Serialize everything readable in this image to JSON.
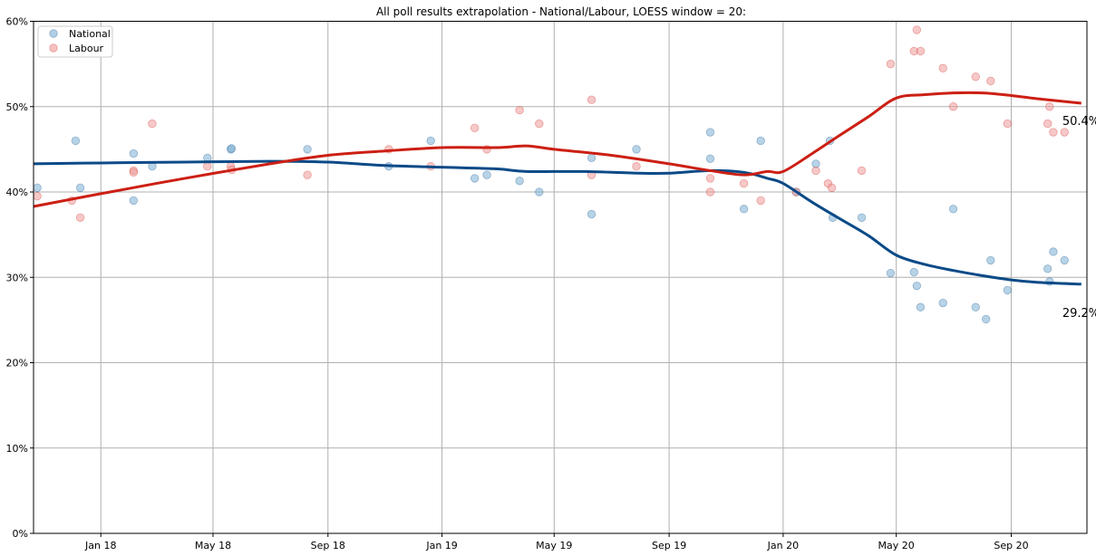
{
  "chart_data": {
    "type": "scatter",
    "title": "All poll results extrapolation - National/Labour, LOESS window = 20:",
    "xlabel": "",
    "ylabel": "",
    "xlim": [
      "2017-10-21",
      "2020-11-21"
    ],
    "ylim": [
      0,
      60
    ],
    "grid": true,
    "legend_position": "top-left",
    "x_ticks": [
      {
        "date": "2018-01-01",
        "label": "Jan 18"
      },
      {
        "date": "2018-05-01",
        "label": "May 18"
      },
      {
        "date": "2018-09-01",
        "label": "Sep 18"
      },
      {
        "date": "2019-01-01",
        "label": "Jan 19"
      },
      {
        "date": "2019-05-01",
        "label": "May 19"
      },
      {
        "date": "2019-09-01",
        "label": "Sep 19"
      },
      {
        "date": "2020-01-01",
        "label": "Jan 20"
      },
      {
        "date": "2020-05-01",
        "label": "May 20"
      },
      {
        "date": "2020-09-01",
        "label": "Sep 20"
      }
    ],
    "y_ticks": [
      {
        "value": 0,
        "label": "0%"
      },
      {
        "value": 10,
        "label": "10%"
      },
      {
        "value": 20,
        "label": "20%"
      },
      {
        "value": 30,
        "label": "30%"
      },
      {
        "value": 40,
        "label": "40%"
      },
      {
        "value": 50,
        "label": "50%"
      },
      {
        "value": 60,
        "label": "60%"
      }
    ],
    "series": [
      {
        "name": "National",
        "dot_color": "#7bafd4",
        "line_color": "#0b4a87",
        "end_label": "29.2%",
        "points": [
          [
            "2017-10-25",
            40.5
          ],
          [
            "2017-12-05",
            46
          ],
          [
            "2017-12-10",
            40.5
          ],
          [
            "2018-02-05",
            44.5
          ],
          [
            "2018-02-05",
            39
          ],
          [
            "2018-02-25",
            43
          ],
          [
            "2018-04-25",
            44
          ],
          [
            "2018-05-20",
            45
          ],
          [
            "2018-05-21",
            45.1
          ],
          [
            "2018-08-10",
            45
          ],
          [
            "2018-11-05",
            43
          ],
          [
            "2018-12-20",
            46
          ],
          [
            "2019-02-05",
            41.6
          ],
          [
            "2019-02-18",
            42
          ],
          [
            "2019-03-25",
            41.3
          ],
          [
            "2019-04-15",
            40
          ],
          [
            "2019-06-10",
            44
          ],
          [
            "2019-06-10",
            37.4
          ],
          [
            "2019-07-28",
            45
          ],
          [
            "2019-10-15",
            47
          ],
          [
            "2019-10-15",
            43.9
          ],
          [
            "2019-11-20",
            38
          ],
          [
            "2019-12-08",
            46
          ],
          [
            "2020-01-15",
            40
          ],
          [
            "2020-02-05",
            43.3
          ],
          [
            "2020-02-20",
            46
          ],
          [
            "2020-02-23",
            37
          ],
          [
            "2020-03-25",
            37
          ],
          [
            "2020-04-25",
            30.5
          ],
          [
            "2020-05-20",
            30.6
          ],
          [
            "2020-05-23",
            29
          ],
          [
            "2020-05-27",
            26.5
          ],
          [
            "2020-06-20",
            27
          ],
          [
            "2020-07-01",
            38
          ],
          [
            "2020-07-25",
            26.5
          ],
          [
            "2020-08-05",
            25.1
          ],
          [
            "2020-08-10",
            32
          ],
          [
            "2020-08-28",
            28.5
          ],
          [
            "2020-10-10",
            31
          ],
          [
            "2020-10-12",
            29.5
          ],
          [
            "2020-10-16",
            33
          ],
          [
            "2020-10-28",
            32
          ]
        ],
        "trend": [
          [
            "2017-10-21",
            43.3
          ],
          [
            "2018-01-01",
            43.4
          ],
          [
            "2018-04-01",
            43.5
          ],
          [
            "2018-07-01",
            43.6
          ],
          [
            "2018-09-01",
            43.5
          ],
          [
            "2018-11-01",
            43.1
          ],
          [
            "2019-01-01",
            42.9
          ],
          [
            "2019-03-01",
            42.7
          ],
          [
            "2019-04-01",
            42.4
          ],
          [
            "2019-06-01",
            42.4
          ],
          [
            "2019-08-01",
            42.2
          ],
          [
            "2019-09-01",
            42.2
          ],
          [
            "2019-10-15",
            42.5
          ],
          [
            "2019-11-20",
            42.3
          ],
          [
            "2019-12-15",
            41.6
          ],
          [
            "2020-01-01",
            41.0
          ],
          [
            "2020-02-01",
            38.8
          ],
          [
            "2020-03-01",
            36.9
          ],
          [
            "2020-04-01",
            34.9
          ],
          [
            "2020-05-01",
            32.6
          ],
          [
            "2020-06-01",
            31.5
          ],
          [
            "2020-07-01",
            30.8
          ],
          [
            "2020-08-01",
            30.2
          ],
          [
            "2020-09-01",
            29.7
          ],
          [
            "2020-10-01",
            29.4
          ],
          [
            "2020-11-15",
            29.2
          ]
        ]
      },
      {
        "name": "Labour",
        "dot_color": "#ee9a9a",
        "line_color": "#cc1f14",
        "end_label": "50.4%",
        "points": [
          [
            "2017-10-25",
            39.5
          ],
          [
            "2017-12-01",
            39
          ],
          [
            "2017-12-10",
            37
          ],
          [
            "2018-02-05",
            42.5
          ],
          [
            "2018-02-05",
            42.3
          ],
          [
            "2018-02-25",
            48
          ],
          [
            "2018-04-25",
            43
          ],
          [
            "2018-05-20",
            43
          ],
          [
            "2018-05-21",
            42.6
          ],
          [
            "2018-08-10",
            42
          ],
          [
            "2018-11-05",
            45
          ],
          [
            "2018-12-20",
            43
          ],
          [
            "2019-02-05",
            47.5
          ],
          [
            "2019-02-18",
            45
          ],
          [
            "2019-03-25",
            49.6
          ],
          [
            "2019-04-15",
            48
          ],
          [
            "2019-06-10",
            50.8
          ],
          [
            "2019-06-10",
            42
          ],
          [
            "2019-07-28",
            43
          ],
          [
            "2019-10-15",
            41.6
          ],
          [
            "2019-10-15",
            40
          ],
          [
            "2019-11-20",
            41
          ],
          [
            "2019-12-08",
            39
          ],
          [
            "2020-01-15",
            40
          ],
          [
            "2020-02-05",
            42.5
          ],
          [
            "2020-02-18",
            41
          ],
          [
            "2020-02-22",
            40.5
          ],
          [
            "2020-03-25",
            42.5
          ],
          [
            "2020-04-25",
            55
          ],
          [
            "2020-05-20",
            56.5
          ],
          [
            "2020-05-23",
            59
          ],
          [
            "2020-05-27",
            56.5
          ],
          [
            "2020-06-20",
            54.5
          ],
          [
            "2020-07-01",
            50
          ],
          [
            "2020-07-25",
            53.5
          ],
          [
            "2020-08-10",
            53
          ],
          [
            "2020-08-28",
            48
          ],
          [
            "2020-10-10",
            48
          ],
          [
            "2020-10-12",
            50
          ],
          [
            "2020-10-16",
            47
          ],
          [
            "2020-10-28",
            47
          ]
        ],
        "trend": [
          [
            "2017-10-21",
            38.3
          ],
          [
            "2018-01-01",
            39.8
          ],
          [
            "2018-04-01",
            41.6
          ],
          [
            "2018-07-01",
            43.3
          ],
          [
            "2018-09-01",
            44.3
          ],
          [
            "2018-11-01",
            44.8
          ],
          [
            "2019-01-01",
            45.2
          ],
          [
            "2019-03-01",
            45.2
          ],
          [
            "2019-04-01",
            45.4
          ],
          [
            "2019-05-01",
            45.0
          ],
          [
            "2019-07-01",
            44.3
          ],
          [
            "2019-09-01",
            43.3
          ],
          [
            "2019-10-15",
            42.5
          ],
          [
            "2019-11-20",
            42.0
          ],
          [
            "2019-12-15",
            42.4
          ],
          [
            "2020-01-01",
            42.4
          ],
          [
            "2020-02-01",
            44.5
          ],
          [
            "2020-03-01",
            46.6
          ],
          [
            "2020-04-01",
            48.8
          ],
          [
            "2020-05-01",
            51.0
          ],
          [
            "2020-06-01",
            51.4
          ],
          [
            "2020-07-01",
            51.6
          ],
          [
            "2020-08-01",
            51.6
          ],
          [
            "2020-09-01",
            51.3
          ],
          [
            "2020-10-01",
            50.9
          ],
          [
            "2020-11-15",
            50.4
          ]
        ]
      }
    ]
  }
}
